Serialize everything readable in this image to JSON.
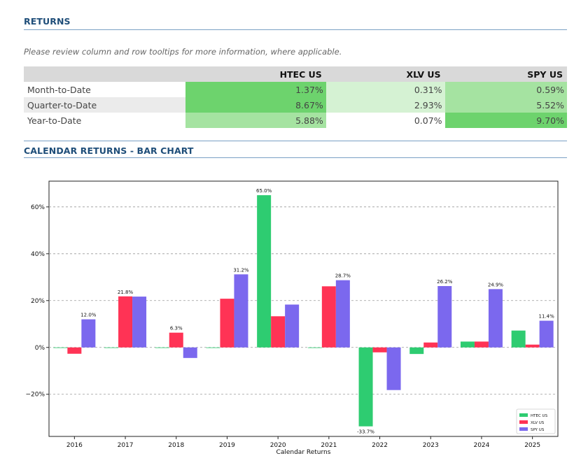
{
  "returns_section": {
    "title": "RETURNS",
    "note": "Please review column and row tooltips for more information, where applicable.",
    "columns": [
      "HTEC US",
      "XLV US",
      "SPY US"
    ],
    "rows": [
      {
        "label": "Month-to-Date",
        "values": [
          "1.37%",
          "0.31%",
          "0.59%"
        ],
        "colors": [
          "#6dd36d",
          "#d5f2d3",
          "#a5e3a1"
        ]
      },
      {
        "label": "Quarter-to-Date",
        "values": [
          "8.67%",
          "2.93%",
          "5.52%"
        ],
        "colors": [
          "#6dd36d",
          "#d5f2d3",
          "#a5e3a1"
        ]
      },
      {
        "label": "Year-to-Date",
        "values": [
          "5.88%",
          "0.07%",
          "9.70%"
        ],
        "colors": [
          "#a5e3a1",
          "#ffffff",
          "#6dd36d"
        ]
      }
    ]
  },
  "calendar_section": {
    "title": "CALENDAR RETURNS - BAR CHART"
  },
  "chart_data": {
    "type": "bar",
    "xlabel": "Calendar Returns",
    "ylabel": "",
    "ylim": [
      -38,
      71
    ],
    "yticks": [
      -20,
      0,
      20,
      40,
      60
    ],
    "ytick_labels": [
      "−20%",
      "0%",
      "20%",
      "40%",
      "60%"
    ],
    "grid": "horizontal dashed",
    "legend_position": "bottom-right",
    "categories": [
      "2016",
      "2017",
      "2018",
      "2019",
      "2020",
      "2021",
      "2022",
      "2023",
      "2024",
      "2025"
    ],
    "series": [
      {
        "name": "HTEC US",
        "color": "#2ecc71",
        "values": [
          0.0,
          0.0,
          0.0,
          0.0,
          65.0,
          0.0,
          -33.7,
          -2.8,
          2.5,
          7.2
        ]
      },
      {
        "name": "XLV US",
        "color": "#ff3355",
        "values": [
          -2.7,
          21.8,
          6.3,
          20.8,
          13.3,
          26.1,
          -2.1,
          2.1,
          2.5,
          1.2
        ]
      },
      {
        "name": "SPY US",
        "color": "#7b68ee",
        "values": [
          12.0,
          21.7,
          -4.5,
          31.2,
          18.3,
          28.7,
          -18.2,
          26.2,
          24.9,
          11.4
        ]
      }
    ],
    "data_labels": [
      {
        "category": "2016",
        "series": "SPY US",
        "text": "12.0%"
      },
      {
        "category": "2017",
        "series": "XLV US",
        "text": "21.8%"
      },
      {
        "category": "2018",
        "series": "XLV US",
        "text": "6.3%"
      },
      {
        "category": "2019",
        "series": "SPY US",
        "text": "31.2%"
      },
      {
        "category": "2020",
        "series": "HTEC US",
        "text": "65.0%"
      },
      {
        "category": "2021",
        "series": "SPY US",
        "text": "28.7%"
      },
      {
        "category": "2022",
        "series": "HTEC US",
        "text": "-33.7%"
      },
      {
        "category": "2023",
        "series": "SPY US",
        "text": "26.2%"
      },
      {
        "category": "2024",
        "series": "SPY US",
        "text": "24.9%"
      },
      {
        "category": "2025",
        "series": "SPY US",
        "text": "11.4%"
      }
    ]
  }
}
